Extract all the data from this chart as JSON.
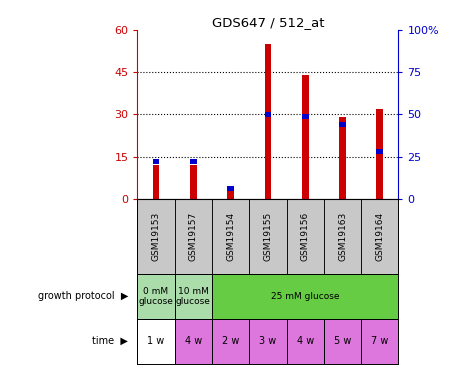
{
  "title": "GDS647 / 512_at",
  "samples": [
    "GSM19153",
    "GSM19157",
    "GSM19154",
    "GSM19155",
    "GSM19156",
    "GSM19163",
    "GSM19164"
  ],
  "count_values": [
    12,
    12,
    4,
    55,
    44,
    29,
    32
  ],
  "percentile_values": [
    22,
    22,
    6,
    50,
    49,
    44,
    28
  ],
  "left_ylim": [
    0,
    60
  ],
  "right_ylim": [
    0,
    100
  ],
  "left_yticks": [
    0,
    15,
    30,
    45,
    60
  ],
  "right_yticks": [
    0,
    25,
    50,
    75,
    100
  ],
  "left_yticklabels": [
    "0",
    "15",
    "30",
    "45",
    "60"
  ],
  "right_yticklabels": [
    "0",
    "25",
    "50",
    "75",
    "100%"
  ],
  "bar_color": "#cc0000",
  "percentile_color": "#0000cc",
  "left_tick_color": "#cc0000",
  "right_tick_color": "#0000cc",
  "time_labels": [
    "1 w",
    "4 w",
    "2 w",
    "3 w",
    "4 w",
    "5 w",
    "7 w"
  ],
  "time_color_first": "#ffffff",
  "time_color_rest": "#dd77dd",
  "sample_bg_color": "#c8c8c8",
  "green_light": "#aaddaa",
  "green_dark": "#66cc44",
  "bar_width": 0.18,
  "dotted_lines": [
    15,
    30,
    45
  ],
  "grid_color": "#000000",
  "chart_bg": "#ffffff"
}
